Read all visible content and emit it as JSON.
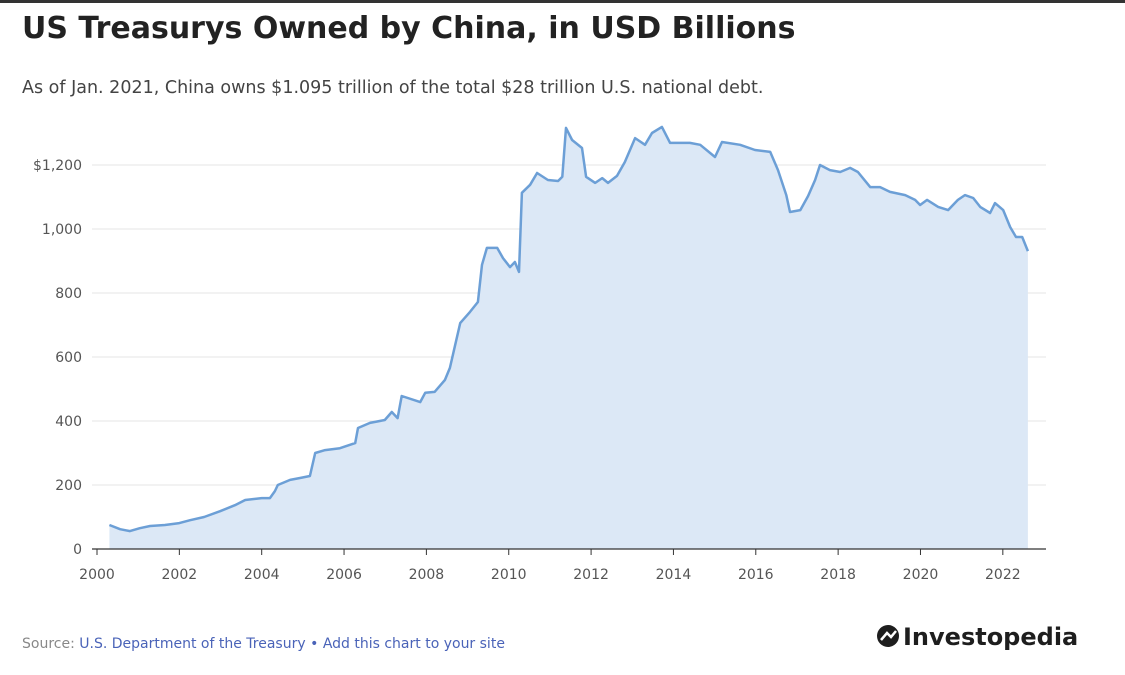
{
  "chart_data": {
    "type": "area",
    "title": "US Treasurys Owned by China, in USD Billions",
    "subtitle": "As of Jan. 2021, China owns $1.095 trillion of the total $28 trillion U.S. national debt.",
    "source_label": "Source:",
    "source": "U.S. Department of the Treasury",
    "separator": "•",
    "link": "Add this chart to your site",
    "logo": "Investopedia",
    "line_color": "#6c9fd6",
    "fill_color": "#dce8f6",
    "grid": true,
    "xlim": [
      2000,
      2023
    ],
    "xticks": [
      2000,
      2002,
      2004,
      2006,
      2008,
      2010,
      2012,
      2014,
      2016,
      2018,
      2020,
      2022
    ],
    "ylim": [
      0,
      1330
    ],
    "yticks": [
      0,
      200,
      400,
      600,
      800,
      {
        "value": 1000,
        "label": "1,000"
      },
      {
        "value": 1200,
        "label": "$1,200"
      }
    ],
    "x": [
      2000.3,
      2000.56,
      2000.8,
      2001.04,
      2001.29,
      2001.65,
      2002.0,
      2002.26,
      2002.6,
      2002.99,
      2003.35,
      2003.6,
      2004.0,
      2004.2,
      2004.32,
      2004.39,
      2004.69,
      2004.93,
      2005.17,
      2005.3,
      2005.54,
      2005.9,
      2006.27,
      2006.34,
      2006.63,
      2006.99,
      2007.16,
      2007.3,
      2007.4,
      2007.85,
      2007.97,
      2008.2,
      2008.45,
      2008.57,
      2008.7,
      2008.82,
      2009.06,
      2009.25,
      2009.35,
      2009.47,
      2009.72,
      2009.86,
      2010.03,
      2010.15,
      2010.25,
      2010.32,
      2010.52,
      2010.69,
      2010.95,
      2011.2,
      2011.3,
      2011.39,
      2011.54,
      2011.78,
      2011.88,
      2012.1,
      2012.27,
      2012.41,
      2012.63,
      2012.82,
      2013.07,
      2013.31,
      2013.48,
      2013.72,
      2013.92,
      2014.4,
      2014.65,
      2015.01,
      2015.18,
      2015.62,
      2015.98,
      2016.35,
      2016.54,
      2016.74,
      2016.83,
      2017.08,
      2017.27,
      2017.44,
      2017.56,
      2017.8,
      2018.05,
      2018.29,
      2018.48,
      2018.78,
      2019.02,
      2019.26,
      2019.63,
      2019.87,
      2019.99,
      2020.16,
      2020.43,
      2020.67,
      2020.91,
      2021.08,
      2021.28,
      2021.45,
      2021.69,
      2021.81,
      2022.01,
      2022.18,
      2022.32,
      2022.47,
      2022.61
    ],
    "values": [
      75,
      62,
      56,
      65,
      72,
      75,
      81,
      90,
      100,
      118,
      137,
      153,
      159,
      159,
      181,
      200,
      216,
      222,
      228,
      300,
      309,
      315,
      331,
      378,
      394,
      403,
      428,
      409,
      478,
      459,
      488,
      491,
      528,
      566,
      638,
      706,
      741,
      772,
      888,
      941,
      941,
      909,
      881,
      897,
      866,
      1113,
      1138,
      1175,
      1153,
      1150,
      1163,
      1316,
      1278,
      1253,
      1163,
      1144,
      1159,
      1144,
      1166,
      1209,
      1284,
      1263,
      1300,
      1319,
      1269,
      1269,
      1263,
      1225,
      1272,
      1263,
      1247,
      1241,
      1184,
      1106,
      1053,
      1059,
      1103,
      1153,
      1200,
      1184,
      1178,
      1191,
      1178,
      1131,
      1131,
      1116,
      1106,
      1091,
      1075,
      1091,
      1069,
      1059,
      1091,
      1106,
      1097,
      1069,
      1050,
      1081,
      1059,
      1006,
      975,
      975,
      931
    ]
  }
}
